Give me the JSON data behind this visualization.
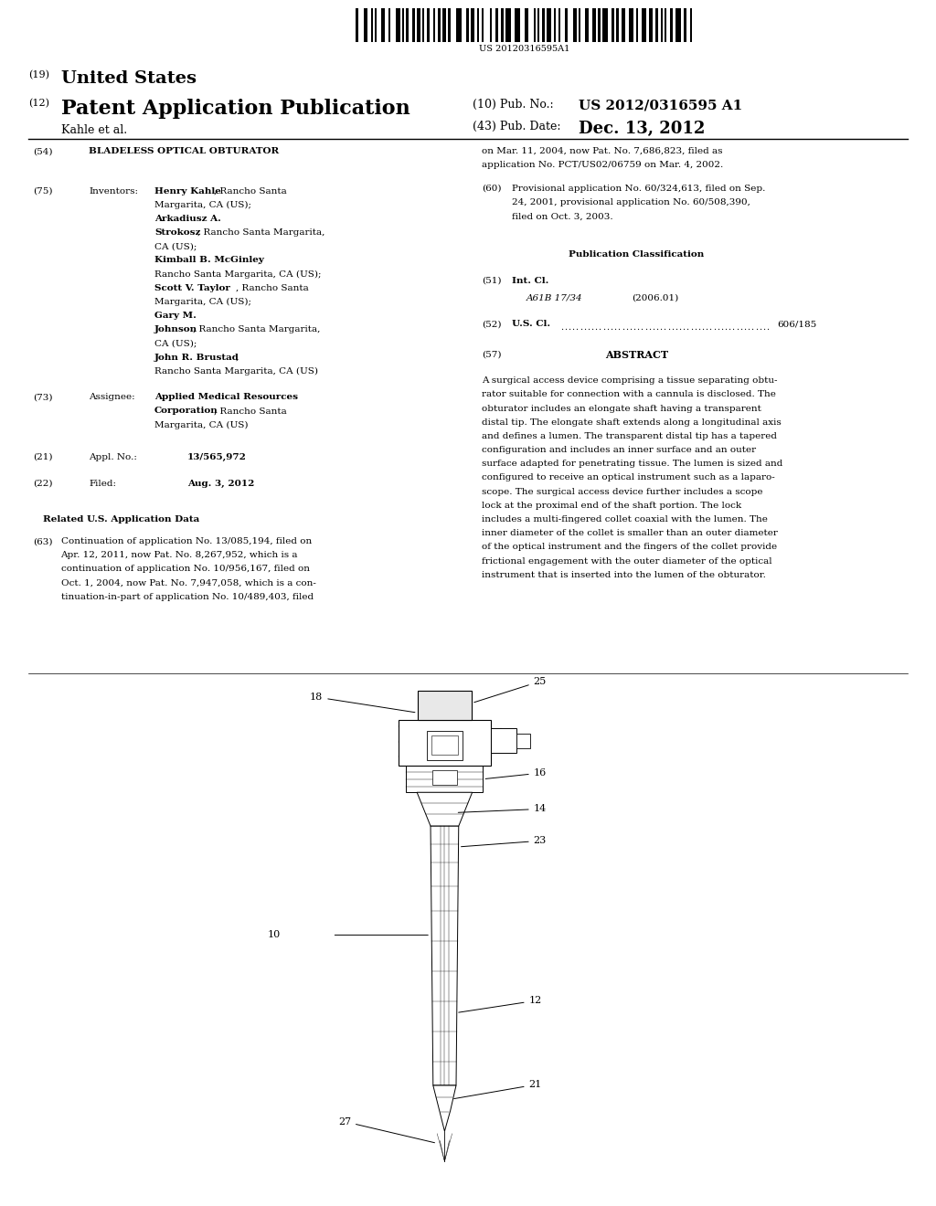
{
  "background_color": "#ffffff",
  "barcode_text": "US 20120316595A1",
  "header": {
    "country_num": "(19)",
    "country": "United States",
    "type_num": "(12)",
    "type": "Patent Application Publication",
    "pub_num_label": "(10) Pub. No.:",
    "pub_num": "US 2012/0316595 A1",
    "author": "Kahle et al.",
    "pub_date_label": "(43) Pub. Date:",
    "pub_date": "Dec. 13, 2012"
  },
  "left_col": {
    "title_num": "(54)",
    "title": "BLADELESS OPTICAL OBTURATOR",
    "inventors_num": "(75)",
    "inventors_label": "Inventors:",
    "assignee_num": "(73)",
    "assignee_label": "Assignee:",
    "appl_num_num": "(21)",
    "appl_num_label": "Appl. No.:",
    "appl_num_val": "13/565,972",
    "filed_num": "(22)",
    "filed_label": "Filed:",
    "filed_val": "Aug. 3, 2012",
    "related_header": "Related U.S. Application Data",
    "related_num": "(63)",
    "related_text": "Continuation of application No. 13/085,194, filed on\nApr. 12, 2011, now Pat. No. 8,267,952, which is a\ncontinuation of application No. 10/956,167, filed on\nOct. 1, 2004, now Pat. No. 7,947,058, which is a con-\ntinuation-in-part of application No. 10/489,403, filed"
  },
  "right_col": {
    "cont_text": "on Mar. 11, 2004, now Pat. No. 7,686,823, filed as\napplication No. PCT/US02/06759 on Mar. 4, 2002.",
    "prov_num": "(60)",
    "prov_text": "Provisional application No. 60/324,613, filed on Sep.\n24, 2001, provisional application No. 60/508,390,\nfiled on Oct. 3, 2003.",
    "pub_class_header": "Publication Classification",
    "int_cl_num": "(51)",
    "int_cl_label": "Int. Cl.",
    "int_cl_val": "A61B 17/34",
    "int_cl_year": "(2006.01)",
    "us_cl_num": "(52)",
    "us_cl_label": "U.S. Cl.",
    "us_cl_val": "606/185",
    "abstract_num": "(57)",
    "abstract_header": "ABSTRACT",
    "abstract_text": "A surgical access device comprising a tissue separating obtu-\nrator suitable for connection with a cannula is disclosed. The\nobturator includes an elongate shaft having a transparent\ndistal tip. The elongate shaft extends along a longitudinal axis\nand defines a lumen. The transparent distal tip has a tapered\nconfiguration and includes an inner surface and an outer\nsurface adapted for penetrating tissue. The lumen is sized and\nconfigured to receive an optical instrument such as a laparo-\nscope. The surgical access device further includes a scope\nlock at the proximal end of the shaft portion. The lock\nincludes a multi-fingered collet coaxial with the lumen. The\ninner diameter of the collet is smaller than an outer diameter\nof the optical instrument and the fingers of the collet provide\nfrictional engagement with the outer diameter of the optical\ninstrument that is inserted into the lumen of the obturator."
  }
}
